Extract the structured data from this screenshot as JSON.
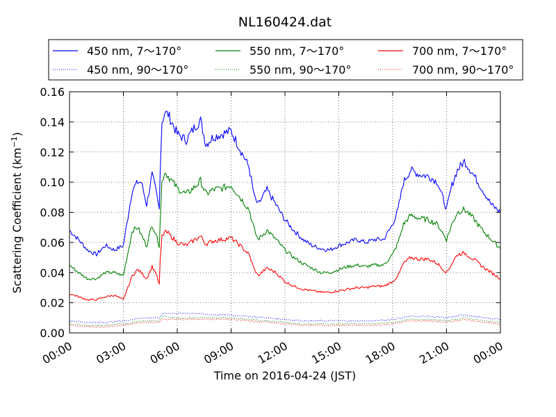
{
  "chart_data": {
    "type": "line",
    "title": "NL160424.dat",
    "xlabel": "Time on 2016-04-24 (JST)",
    "ylabel_main": "Scattering Coefficient (km",
    "ylabel_sup": "−1",
    "ylabel_close": ")",
    "xlim": [
      0,
      24
    ],
    "ylim": [
      0,
      0.16
    ],
    "x_ticks": [
      0,
      3,
      6,
      9,
      12,
      15,
      18,
      21,
      24
    ],
    "x_tick_labels": [
      "00:00",
      "03:00",
      "06:00",
      "09:00",
      "12:00",
      "15:00",
      "18:00",
      "21:00",
      "00:00"
    ],
    "y_ticks": [
      0,
      0.02,
      0.04,
      0.06,
      0.08,
      0.1,
      0.12,
      0.14,
      0.16
    ],
    "y_tick_labels": [
      "0.00",
      "0.02",
      "0.04",
      "0.06",
      "0.08",
      "0.10",
      "0.12",
      "0.14",
      "0.16"
    ],
    "grid": true,
    "legend_position": "top",
    "legend_columns": 3,
    "series": [
      {
        "name": "450 nm, 7～170°",
        "color": "#0000ff",
        "style": "solid",
        "x": [
          0,
          0.5,
          1,
          1.5,
          2,
          2.5,
          3,
          3.5,
          3.8,
          4,
          4.3,
          4.6,
          4.8,
          5,
          5.05,
          5.15,
          5.3,
          5.5,
          6,
          6.5,
          7,
          7.3,
          7.6,
          8,
          8.5,
          9,
          9.5,
          10,
          10.3,
          10.5,
          11,
          11.5,
          12,
          12.5,
          13,
          13.5,
          14,
          14.5,
          15,
          15.5,
          16,
          16.5,
          17,
          17.5,
          18,
          18.3,
          18.6,
          19,
          19.5,
          20,
          20.5,
          21,
          21.3,
          21.6,
          22,
          22.5,
          23,
          23.5,
          24
        ],
        "y": [
          0.068,
          0.062,
          0.055,
          0.052,
          0.058,
          0.055,
          0.058,
          0.095,
          0.1,
          0.1,
          0.085,
          0.105,
          0.095,
          0.082,
          0.11,
          0.14,
          0.146,
          0.145,
          0.132,
          0.128,
          0.137,
          0.141,
          0.125,
          0.13,
          0.132,
          0.134,
          0.122,
          0.11,
          0.09,
          0.085,
          0.095,
          0.085,
          0.075,
          0.068,
          0.062,
          0.058,
          0.056,
          0.055,
          0.058,
          0.06,
          0.062,
          0.06,
          0.062,
          0.062,
          0.072,
          0.082,
          0.1,
          0.108,
          0.105,
          0.104,
          0.1,
          0.082,
          0.098,
          0.108,
          0.114,
          0.105,
          0.095,
          0.085,
          0.08
        ]
      },
      {
        "name": "550 nm, 7～170°",
        "color": "#008000",
        "style": "solid",
        "x": [
          0,
          0.5,
          1,
          1.5,
          2,
          2.5,
          3,
          3.5,
          3.8,
          4,
          4.3,
          4.6,
          4.8,
          5,
          5.05,
          5.15,
          5.3,
          5.5,
          6,
          6.5,
          7,
          7.3,
          7.6,
          8,
          8.5,
          9,
          9.5,
          10,
          10.3,
          10.5,
          11,
          11.5,
          12,
          12.5,
          13,
          13.5,
          14,
          14.5,
          15,
          15.5,
          16,
          16.5,
          17,
          17.5,
          18,
          18.3,
          18.6,
          19,
          19.5,
          20,
          20.5,
          21,
          21.3,
          21.6,
          22,
          22.5,
          23,
          23.5,
          24
        ],
        "y": [
          0.045,
          0.04,
          0.036,
          0.036,
          0.04,
          0.04,
          0.038,
          0.068,
          0.07,
          0.065,
          0.058,
          0.072,
          0.066,
          0.058,
          0.075,
          0.1,
          0.107,
          0.104,
          0.096,
          0.092,
          0.097,
          0.101,
          0.092,
          0.095,
          0.096,
          0.098,
          0.09,
          0.082,
          0.068,
          0.062,
          0.068,
          0.062,
          0.055,
          0.05,
          0.046,
          0.043,
          0.04,
          0.04,
          0.042,
          0.044,
          0.045,
          0.044,
          0.045,
          0.045,
          0.052,
          0.06,
          0.072,
          0.078,
          0.076,
          0.075,
          0.072,
          0.062,
          0.072,
          0.08,
          0.082,
          0.076,
          0.068,
          0.062,
          0.056
        ]
      },
      {
        "name": "700 nm, 7～170°",
        "color": "#ff0000",
        "style": "solid",
        "x": [
          0,
          0.5,
          1,
          1.5,
          2,
          2.5,
          3,
          3.5,
          3.8,
          4,
          4.3,
          4.6,
          4.8,
          5,
          5.05,
          5.15,
          5.3,
          5.5,
          6,
          6.5,
          7,
          7.3,
          7.6,
          8,
          8.5,
          9,
          9.5,
          10,
          10.3,
          10.5,
          11,
          11.5,
          12,
          12.5,
          13,
          13.5,
          14,
          14.5,
          15,
          15.5,
          16,
          16.5,
          17,
          17.5,
          18,
          18.3,
          18.6,
          19,
          19.5,
          20,
          20.5,
          21,
          21.3,
          21.6,
          22,
          22.5,
          23,
          23.5,
          24
        ],
        "y": [
          0.026,
          0.024,
          0.022,
          0.022,
          0.024,
          0.025,
          0.022,
          0.038,
          0.042,
          0.04,
          0.036,
          0.044,
          0.04,
          0.032,
          0.048,
          0.064,
          0.067,
          0.066,
          0.06,
          0.058,
          0.062,
          0.064,
          0.059,
          0.061,
          0.062,
          0.063,
          0.058,
          0.052,
          0.042,
          0.038,
          0.043,
          0.04,
          0.034,
          0.031,
          0.029,
          0.028,
          0.027,
          0.027,
          0.028,
          0.029,
          0.03,
          0.03,
          0.031,
          0.031,
          0.034,
          0.038,
          0.046,
          0.05,
          0.049,
          0.049,
          0.046,
          0.04,
          0.046,
          0.052,
          0.053,
          0.049,
          0.044,
          0.04,
          0.036
        ]
      },
      {
        "name": "450 nm, 90～170°",
        "color": "#0000ff",
        "style": "dotted",
        "x": [
          0,
          1,
          2,
          3,
          4,
          5,
          5.2,
          6,
          7,
          8,
          9,
          10,
          11,
          12,
          13,
          14,
          15,
          16,
          17,
          18,
          19,
          20,
          21,
          22,
          23,
          24
        ],
        "y": [
          0.008,
          0.007,
          0.007,
          0.008,
          0.01,
          0.01,
          0.013,
          0.013,
          0.013,
          0.012,
          0.012,
          0.011,
          0.01,
          0.009,
          0.008,
          0.008,
          0.008,
          0.008,
          0.008,
          0.009,
          0.011,
          0.011,
          0.01,
          0.012,
          0.01,
          0.009
        ]
      },
      {
        "name": "550 nm, 90～170°",
        "color": "#008000",
        "style": "dotted",
        "x": [
          0,
          1,
          2,
          3,
          4,
          5,
          5.2,
          6,
          7,
          8,
          9,
          10,
          11,
          12,
          13,
          14,
          15,
          16,
          17,
          18,
          19,
          20,
          21,
          22,
          23,
          24
        ],
        "y": [
          0.006,
          0.005,
          0.005,
          0.006,
          0.008,
          0.008,
          0.011,
          0.01,
          0.01,
          0.01,
          0.01,
          0.009,
          0.008,
          0.007,
          0.006,
          0.006,
          0.006,
          0.006,
          0.006,
          0.007,
          0.009,
          0.009,
          0.008,
          0.01,
          0.008,
          0.007
        ]
      },
      {
        "name": "700 nm, 90～170°",
        "color": "#ff0000",
        "style": "dotted",
        "x": [
          0,
          1,
          2,
          3,
          4,
          5,
          5.2,
          6,
          7,
          8,
          9,
          10,
          11,
          12,
          13,
          14,
          15,
          16,
          17,
          18,
          19,
          20,
          21,
          22,
          23,
          24
        ],
        "y": [
          0.005,
          0.004,
          0.004,
          0.005,
          0.007,
          0.007,
          0.009,
          0.009,
          0.009,
          0.009,
          0.009,
          0.008,
          0.007,
          0.006,
          0.005,
          0.005,
          0.005,
          0.005,
          0.005,
          0.006,
          0.008,
          0.008,
          0.007,
          0.009,
          0.007,
          0.006
        ]
      }
    ]
  }
}
